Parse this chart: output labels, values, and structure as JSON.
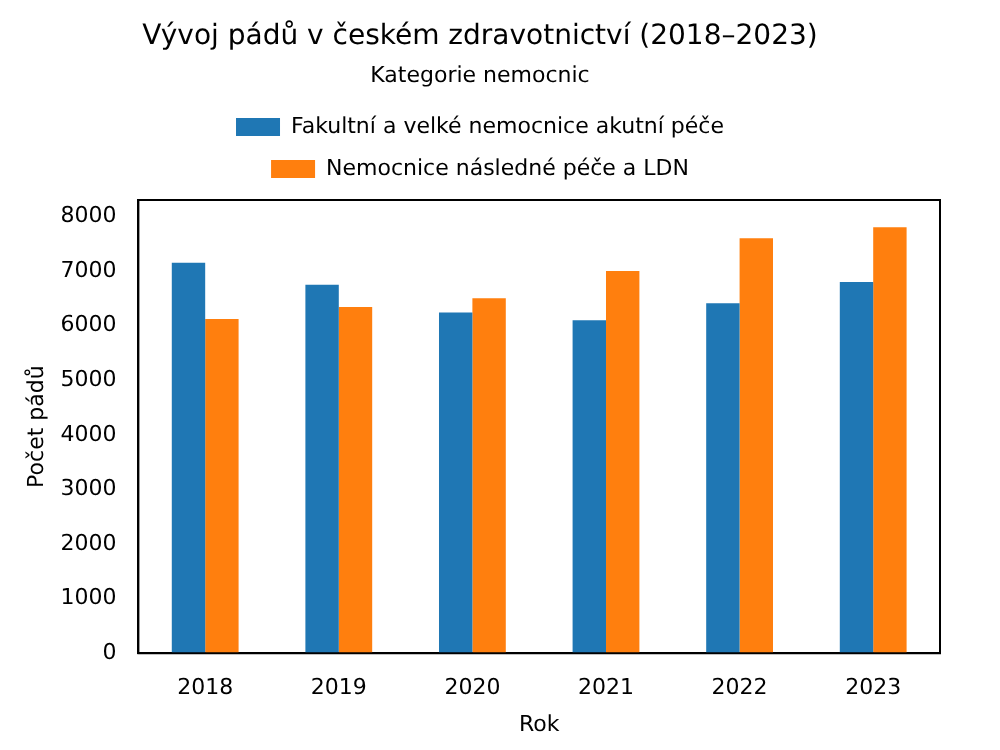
{
  "chart_data": {
    "type": "bar",
    "title": "Vývoj pádů v českém zdravotnictví (2018–2023)",
    "xlabel": "Rok",
    "ylabel": "Počet pádů",
    "legend_title": "Kategorie nemocnic",
    "categories": [
      "2018",
      "2019",
      "2020",
      "2021",
      "2022",
      "2023"
    ],
    "series": [
      {
        "name": "Fakultní a velké nemocnice akutní péče",
        "color": "#1f77b4",
        "values": [
          7150,
          6750,
          6240,
          6100,
          6410,
          6800
        ]
      },
      {
        "name": "Nemocnice následné péče a LDN",
        "color": "#ff7f0e",
        "values": [
          6120,
          6340,
          6500,
          7000,
          7600,
          7800
        ]
      }
    ],
    "ylim": [
      0,
      8300
    ],
    "yticks": [
      0,
      1000,
      2000,
      3000,
      4000,
      5000,
      6000,
      7000,
      8000
    ],
    "grid": false,
    "legend": "top"
  }
}
